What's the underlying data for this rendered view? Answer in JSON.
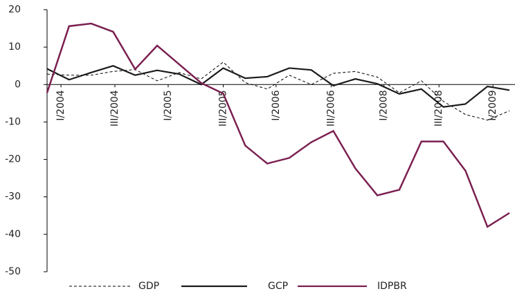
{
  "chart_data": {
    "type": "line",
    "x": [
      0,
      1,
      2,
      3,
      4,
      5,
      6,
      7,
      8,
      9,
      10,
      11,
      12,
      13,
      14,
      15,
      16,
      17,
      18,
      19,
      20,
      21
    ],
    "series": [
      {
        "name": "GDP",
        "color": "#000000",
        "dash": true,
        "values": [
          2.8,
          2.5,
          2.5,
          3.5,
          4,
          1,
          3.2,
          1.5,
          6,
          0.5,
          -1.2,
          2.5,
          0,
          3,
          3.5,
          2,
          -2.2,
          1,
          -4.5,
          -8,
          -9.5,
          -7
        ]
      },
      {
        "name": "GCP",
        "color": "#1a1a1a",
        "dash": false,
        "values": [
          4.2,
          1.3,
          3.2,
          5,
          2.5,
          3.8,
          2.8,
          0,
          4.4,
          1.7,
          2.1,
          4.4,
          3.9,
          -0.3,
          1.5,
          0.2,
          -2.5,
          -1.2,
          -6,
          -5.2,
          -0.5,
          -1.5
        ]
      },
      {
        "name": "IDPBR",
        "color": "#7a1f50",
        "dash": false,
        "values": [
          -2.2,
          15.6,
          16.3,
          14.1,
          4.1,
          10.4,
          5.4,
          0.4,
          -2.4,
          -16.3,
          -21.1,
          -19.6,
          -15.4,
          -12.4,
          -22.4,
          -29.6,
          -28.1,
          -15.2,
          -15.2,
          -23,
          -38,
          -34.3
        ]
      }
    ],
    "xlim": [
      0,
      21
    ],
    "xticks": [
      {
        "value": 0.63,
        "label": "I/2004"
      },
      {
        "value": 3.08,
        "label": "III/2004"
      },
      {
        "value": 5.5,
        "label": "I/2005"
      },
      {
        "value": 8.0,
        "label": "III/2005"
      },
      {
        "value": 10.4,
        "label": "I/2006"
      },
      {
        "value": 12.9,
        "label": "III/2006"
      },
      {
        "value": 15.3,
        "label": "I/2008"
      },
      {
        "value": 17.8,
        "label": "III/2008"
      },
      {
        "value": 20.25,
        "label": "I/2009"
      }
    ],
    "ylim": [
      -50,
      20
    ],
    "yticks": [
      -50,
      -40,
      -30,
      -20,
      -10,
      0,
      10,
      20
    ]
  }
}
